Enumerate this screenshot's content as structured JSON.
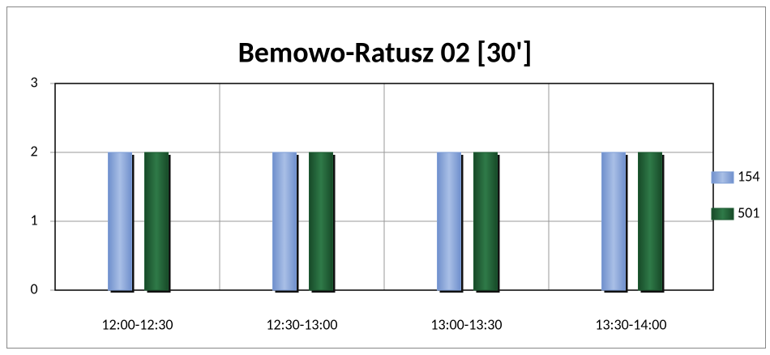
{
  "chart_data": {
    "type": "bar",
    "title": "Bemowo-Ratusz 02 [30']",
    "categories": [
      "12:00-12:30",
      "12:30-13:00",
      "13:00-13:30",
      "13:30-14:00"
    ],
    "series": [
      {
        "name": "154",
        "color": "#7f9fd6",
        "values": [
          2,
          2,
          2,
          2
        ]
      },
      {
        "name": "501",
        "color": "#1d5a32",
        "values": [
          2,
          2,
          2,
          2
        ]
      }
    ],
    "ylim": [
      0,
      3
    ],
    "yticks": [
      0,
      1,
      2,
      3
    ],
    "grid": true,
    "legend": "right"
  }
}
